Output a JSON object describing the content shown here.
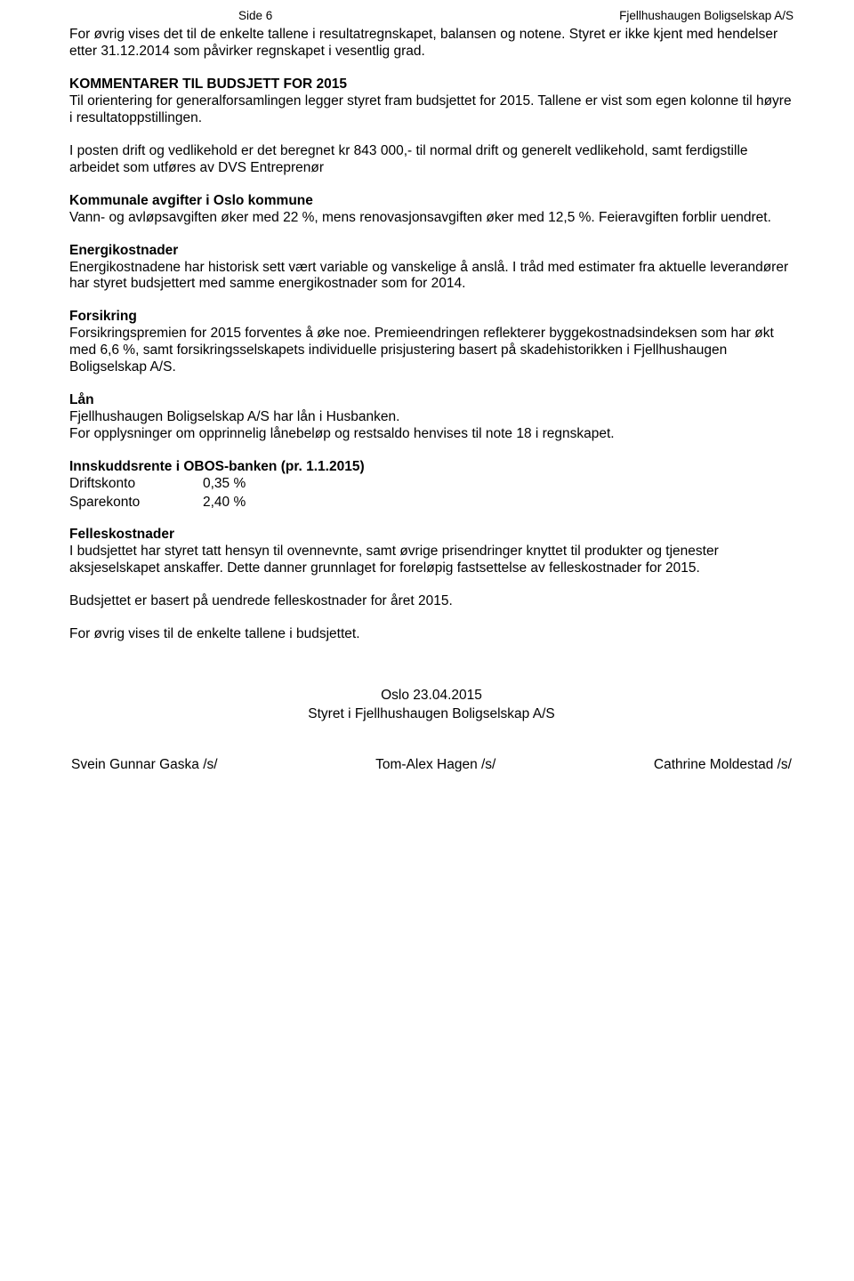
{
  "header": {
    "page_ref": "Side 6",
    "company": "Fjellhushaugen Boligselskap A/S"
  },
  "intro": {
    "p1": "For øvrig vises det til de enkelte tallene i resultatregnskapet, balansen og notene. Styret er ikke kjent med hendelser etter 31.12.2014 som påvirker regnskapet i vesentlig grad."
  },
  "kommentarer": {
    "heading": "KOMMENTARER TIL BUDSJETT FOR 2015",
    "p1": "Til orientering for generalforsamlingen legger styret fram budsjettet for 2015. Tallene er vist som egen kolonne til høyre i resultatoppstillingen.",
    "p2": "I posten drift og vedlikehold er det beregnet kr 843 000,- til normal drift og generelt vedlikehold, samt ferdigstille arbeidet som utføres av DVS Entreprenør"
  },
  "kommunale": {
    "heading": "Kommunale avgifter i Oslo kommune",
    "p1": "Vann- og avløpsavgiften øker med 22 %, mens renovasjonsavgiften øker med 12,5 %. Feieravgiften forblir uendret."
  },
  "energi": {
    "heading": "Energikostnader",
    "p1": "Energikostnadene har historisk sett vært variable og vanskelige å anslå. I tråd med estimater fra aktuelle leverandører har styret budsjettert med samme energikostnader som for 2014."
  },
  "forsikring": {
    "heading": "Forsikring",
    "p1": "Forsikringspremien for 2015 forventes å øke noe. Premieendringen reflekterer byggekostnadsindeksen som har økt med 6,6 %, samt forsikringsselskapets individuelle prisjustering basert på skadehistorikken i Fjellhushaugen Boligselskap A/S."
  },
  "laan": {
    "heading": "Lån",
    "p1": "Fjellhushaugen Boligselskap A/S har lån i Husbanken.",
    "p2": "For opplysninger om opprinnelig lånebeløp og restsaldo henvises til note 18 i regnskapet."
  },
  "innskuddsrente": {
    "heading": "Innskuddsrente i OBOS-banken (pr. 1.1.2015)",
    "driftskonto_label": "Driftskonto",
    "driftskonto_value": "0,35 %",
    "sparekonto_label": "Sparekonto",
    "sparekonto_value": "2,40 %"
  },
  "felleskostnader": {
    "heading": "Felleskostnader",
    "p1": "I budsjettet har styret tatt hensyn til ovennevnte, samt øvrige prisendringer knyttet til produkter og tjenester aksjeselskapet anskaffer. Dette danner grunnlaget for foreløpig fastsettelse av felleskostnader for 2015.",
    "p2": "Budsjettet er basert på uendrede felleskostnader for året 2015.",
    "p3": "For øvrig vises til de enkelte tallene i budsjettet."
  },
  "signature": {
    "place_date": "Oslo 23.04.2015",
    "board_line": "Styret i Fjellhushaugen Boligselskap A/S",
    "signer1": "Svein Gunnar Gaska /s/",
    "signer2": "Tom-Alex Hagen /s/",
    "signer3": "Cathrine Moldestad /s/"
  }
}
